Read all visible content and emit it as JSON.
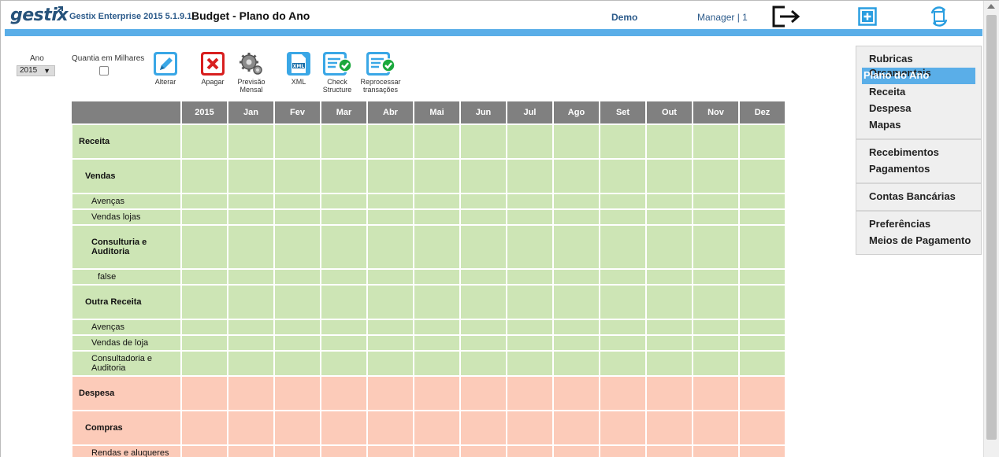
{
  "header": {
    "logo": "gestix",
    "app_title": "Gestix Enterprise 2015 5.1.9.1",
    "page_title": "Budget - Plano do Ano",
    "company": "Demo",
    "user": "Manager | 1"
  },
  "controls": {
    "ano_label": "Ano",
    "ano_value": "2015",
    "milhares_label": "Quantia em Milhares"
  },
  "toolbar": {
    "alterar": "Alterar",
    "apagar": "Apagar",
    "previsao_line1": "Previsão",
    "previsao_line2": "Mensal",
    "xml": "XML",
    "xml_icon_text": "XML",
    "check_line1": "Check",
    "check_line2": "Structure",
    "reproc_line1": "Reprocessar",
    "reproc_line2": "transações"
  },
  "grid": {
    "columns": [
      "",
      "2015",
      "Jan",
      "Fev",
      "Mar",
      "Abr",
      "Mai",
      "Jun",
      "Jul",
      "Ago",
      "Set",
      "Out",
      "Nov",
      "Dez"
    ],
    "rows": [
      {
        "label": "Receita",
        "level": "lv0",
        "group": "rec",
        "h": 44
      },
      {
        "label": "Vendas",
        "level": "lv1",
        "group": "rec",
        "h": 44
      },
      {
        "label": "Avenças",
        "level": "lv2",
        "group": "rec",
        "h": 20
      },
      {
        "label": "Vendas lojas",
        "level": "lv2",
        "group": "rec",
        "h": 20
      },
      {
        "label": "Consulturia e Auditoria",
        "level": "lv2b",
        "group": "rec",
        "h": 56
      },
      {
        "label": "false",
        "level": "lv3",
        "group": "rec",
        "h": 20
      },
      {
        "label": "Outra Receita",
        "level": "lv1",
        "group": "rec",
        "h": 44
      },
      {
        "label": "Avenças",
        "level": "lv2",
        "group": "rec",
        "h": 20
      },
      {
        "label": "Vendas de loja",
        "level": "lv2",
        "group": "rec",
        "h": 20
      },
      {
        "label": "Consultadoria e Auditoria",
        "level": "lv2",
        "group": "rec",
        "h": 32
      },
      {
        "label": "Despesa",
        "level": "lv0",
        "group": "desp",
        "h": 44
      },
      {
        "label": "Compras",
        "level": "lv1",
        "group": "desp",
        "h": 44
      },
      {
        "label": "Rendas e aluqueres",
        "level": "lv2",
        "group": "desp",
        "h": 20
      }
    ]
  },
  "sidemenu": {
    "groups": [
      [
        "Rubricas Orçamentais",
        "Plano do Ano",
        "Receita",
        "Despesa",
        "Mapas"
      ],
      [
        "Recebimentos",
        "Pagamentos"
      ],
      [
        "Contas Bancárias"
      ],
      [
        "Preferências",
        "Meios de Pagamento"
      ]
    ],
    "active": "Plano do Ano"
  },
  "colors": {
    "accent": "#5aaee8",
    "receita_bg": "#cde5b5",
    "despesa_bg": "#fccbb9",
    "header_grey": "#808080"
  }
}
